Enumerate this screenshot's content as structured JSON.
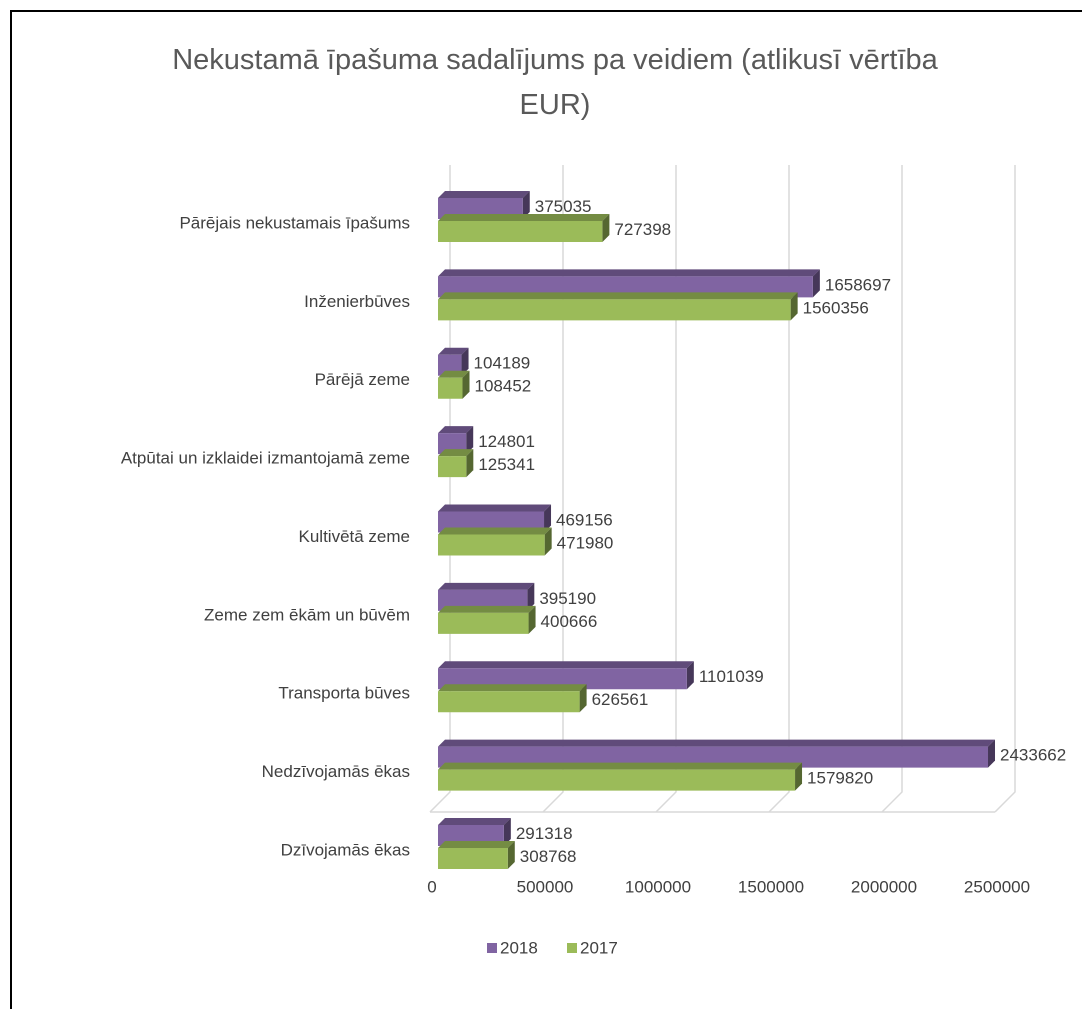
{
  "chart_data": {
    "type": "bar3d-horizontal",
    "title": "Nekustamā īpašuma sadalījums pa veidiem (atlikusī vērtība EUR)",
    "categories": [
      "Pārējais nekustamais īpašums",
      "Inženierbūves",
      "Pārējā zeme",
      "Atpūtai un izklaidei izmantojamā zeme",
      "Kultivētā zeme",
      "Zeme zem ēkām un būvēm",
      "Transporta būves",
      "Nedzīvojamās ēkas",
      "Dzīvojamās ēkas"
    ],
    "series": [
      {
        "name": "2018",
        "color": "#8064a2",
        "values": [
          375035,
          1658697,
          104189,
          124801,
          469156,
          395190,
          1101039,
          2433662,
          291318
        ]
      },
      {
        "name": "2017",
        "color": "#9bbb59",
        "values": [
          727398,
          1560356,
          108452,
          125341,
          471980,
          400666,
          626561,
          1579820,
          308768
        ]
      }
    ],
    "xlim": [
      0,
      2500000
    ],
    "xticks": [
      0,
      500000,
      1000000,
      1500000,
      2000000,
      2500000
    ],
    "grid": true,
    "legend": "bottom"
  }
}
